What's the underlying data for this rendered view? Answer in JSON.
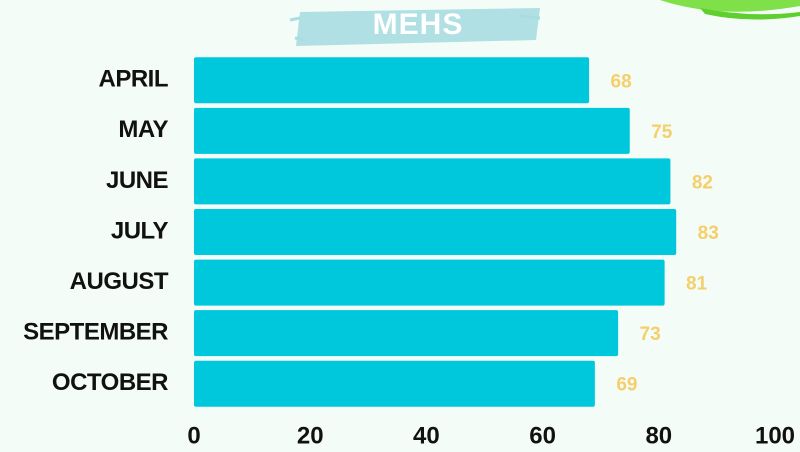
{
  "chart_data": {
    "type": "bar",
    "orientation": "horizontal",
    "title": "MEHS",
    "categories": [
      "APRIL",
      "MAY",
      "JUNE",
      "JULY",
      "AUGUST",
      "SEPTEMBER",
      "OCTOBER"
    ],
    "values": [
      68,
      75,
      82,
      83,
      81,
      73,
      69
    ],
    "color": "#00c8dc",
    "value_color": "#f5cf6a",
    "xlim": [
      0,
      100
    ],
    "xticks": [
      0,
      20,
      40,
      60,
      80,
      100
    ],
    "grid": false
  }
}
